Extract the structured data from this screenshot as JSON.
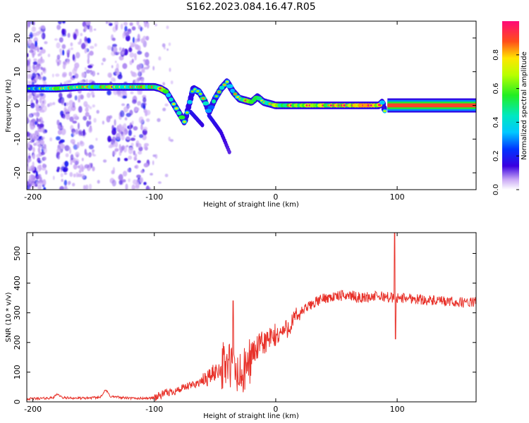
{
  "figure_title": "S162.2023.084.16.47.R05",
  "colors": {
    "snr_line": "#e8322a",
    "spectral_low": "#c9a8f5",
    "spectral_mid": "#3a00e0",
    "spectral_high": "#ff1a6a"
  },
  "chart_data": [
    {
      "type": "heatmap",
      "title": "S162.2023.084.16.47.R05",
      "xlabel": "Height of straight line (km)",
      "ylabel": "Frequency (Hz)",
      "xlim": [
        -205,
        165
      ],
      "ylim": [
        -25,
        25
      ],
      "x_ticks": [
        -200,
        -100,
        0,
        100
      ],
      "y_ticks": [
        -20,
        -10,
        0,
        10,
        20
      ],
      "colorbar": {
        "label": "Normalized spectral amplitude",
        "range": [
          0.0,
          1.0
        ],
        "ticks": [
          0.0,
          0.2,
          0.4,
          0.6,
          0.8
        ],
        "tick_labels": [
          "0.0",
          "0.2",
          "0.4",
          "0.6",
          "0.8"
        ]
      },
      "ridge": [
        {
          "x": -205,
          "y": 5,
          "amp": 0.25
        },
        {
          "x": -190,
          "y": 5,
          "amp": 0.4
        },
        {
          "x": -180,
          "y": 5,
          "amp": 0.5
        },
        {
          "x": -160,
          "y": 5.5,
          "amp": 0.55
        },
        {
          "x": -140,
          "y": 5.5,
          "amp": 0.6
        },
        {
          "x": -120,
          "y": 5.5,
          "amp": 0.5
        },
        {
          "x": -100,
          "y": 5.5,
          "amp": 0.55
        },
        {
          "x": -95,
          "y": 5,
          "amp": 0.6
        },
        {
          "x": -90,
          "y": 4,
          "amp": 0.5
        },
        {
          "x": -85,
          "y": 1,
          "amp": 0.45
        },
        {
          "x": -80,
          "y": -2,
          "amp": 0.5
        },
        {
          "x": -75,
          "y": -5,
          "amp": 0.45
        },
        {
          "x": -68,
          "y": 5,
          "amp": 0.35
        },
        {
          "x": -63,
          "y": 4,
          "amp": 0.45
        },
        {
          "x": -58,
          "y": 1,
          "amp": 0.4
        },
        {
          "x": -55,
          "y": -2,
          "amp": 0.35
        },
        {
          "x": -50,
          "y": 2,
          "amp": 0.4
        },
        {
          "x": -45,
          "y": 5,
          "amp": 0.45
        },
        {
          "x": -40,
          "y": 7,
          "amp": 0.4
        },
        {
          "x": -35,
          "y": 4,
          "amp": 0.45
        },
        {
          "x": -30,
          "y": 2,
          "amp": 0.5
        },
        {
          "x": -25,
          "y": 1.5,
          "amp": 0.55
        },
        {
          "x": -20,
          "y": 1,
          "amp": 0.5
        },
        {
          "x": -15,
          "y": 2.5,
          "amp": 0.55
        },
        {
          "x": -10,
          "y": 1,
          "amp": 0.5
        },
        {
          "x": 0,
          "y": 0,
          "amp": 0.6
        },
        {
          "x": 20,
          "y": 0,
          "amp": 0.65
        },
        {
          "x": 50,
          "y": 0,
          "amp": 0.7
        },
        {
          "x": 85,
          "y": 0,
          "amp": 0.7
        },
        {
          "x": 88,
          "y": 1,
          "amp": 0.45
        },
        {
          "x": 90,
          "y": -2,
          "amp": 0.4
        },
        {
          "x": 92,
          "y": 0,
          "amp": 0.8
        },
        {
          "x": 120,
          "y": 0,
          "amp": 0.9
        },
        {
          "x": 165,
          "y": 0,
          "amp": 0.9
        }
      ],
      "secondary_streaks": [
        {
          "name": "descending-trace-1",
          "points": [
            {
              "x": -70,
              "y": -2,
              "amp": 0.3
            },
            {
              "x": -60,
              "y": -6,
              "amp": 0.25
            }
          ]
        },
        {
          "name": "descending-trace-2",
          "points": [
            {
              "x": -55,
              "y": -3,
              "amp": 0.3
            },
            {
              "x": -45,
              "y": -8,
              "amp": 0.25
            },
            {
              "x": -38,
              "y": -14,
              "amp": 0.2
            }
          ]
        }
      ],
      "noise_bands_x": [
        [
          -205,
          -190
        ],
        [
          -180,
          -150
        ],
        [
          -138,
          -105
        ]
      ]
    },
    {
      "type": "line",
      "xlabel": "Height of straight line (km)",
      "ylabel": "SNR (10 * v/v)",
      "xlim": [
        -205,
        165
      ],
      "ylim": [
        0,
        570
      ],
      "x_ticks": [
        -200,
        -100,
        0,
        100
      ],
      "y_ticks": [
        0,
        100,
        200,
        300,
        400,
        500
      ],
      "profile": [
        {
          "x": -205,
          "y": 10
        },
        {
          "x": -190,
          "y": 12
        },
        {
          "x": -183,
          "y": 14
        },
        {
          "x": -180,
          "y": 28
        },
        {
          "x": -176,
          "y": 14
        },
        {
          "x": -160,
          "y": 12
        },
        {
          "x": -145,
          "y": 15
        },
        {
          "x": -140,
          "y": 40
        },
        {
          "x": -136,
          "y": 18
        },
        {
          "x": -120,
          "y": 12
        },
        {
          "x": -105,
          "y": 12
        },
        {
          "x": -100,
          "y": 14
        },
        {
          "x": -90,
          "y": 30
        },
        {
          "x": -80,
          "y": 40
        },
        {
          "x": -70,
          "y": 55
        },
        {
          "x": -60,
          "y": 70
        },
        {
          "x": -50,
          "y": 100
        },
        {
          "x": -40,
          "y": 130
        },
        {
          "x": -35,
          "y": 110
        },
        {
          "x": -30,
          "y": 80
        },
        {
          "x": -25,
          "y": 100
        },
        {
          "x": -20,
          "y": 160
        },
        {
          "x": -10,
          "y": 200
        },
        {
          "x": 0,
          "y": 220
        },
        {
          "x": 10,
          "y": 250
        },
        {
          "x": 20,
          "y": 300
        },
        {
          "x": 30,
          "y": 330
        },
        {
          "x": 40,
          "y": 350
        },
        {
          "x": 50,
          "y": 355
        },
        {
          "x": 60,
          "y": 360
        },
        {
          "x": 70,
          "y": 350
        },
        {
          "x": 80,
          "y": 355
        },
        {
          "x": 90,
          "y": 355
        },
        {
          "x": 96,
          "y": 350
        },
        {
          "x": 110,
          "y": 350
        },
        {
          "x": 130,
          "y": 340
        },
        {
          "x": 150,
          "y": 335
        },
        {
          "x": 165,
          "y": 335
        }
      ],
      "features": [
        {
          "label": "peak",
          "x": 98,
          "y": 570
        },
        {
          "label": "dip",
          "x": 98,
          "y": 212
        },
        {
          "label": "spike",
          "x": -35,
          "y": 340
        }
      ]
    }
  ]
}
